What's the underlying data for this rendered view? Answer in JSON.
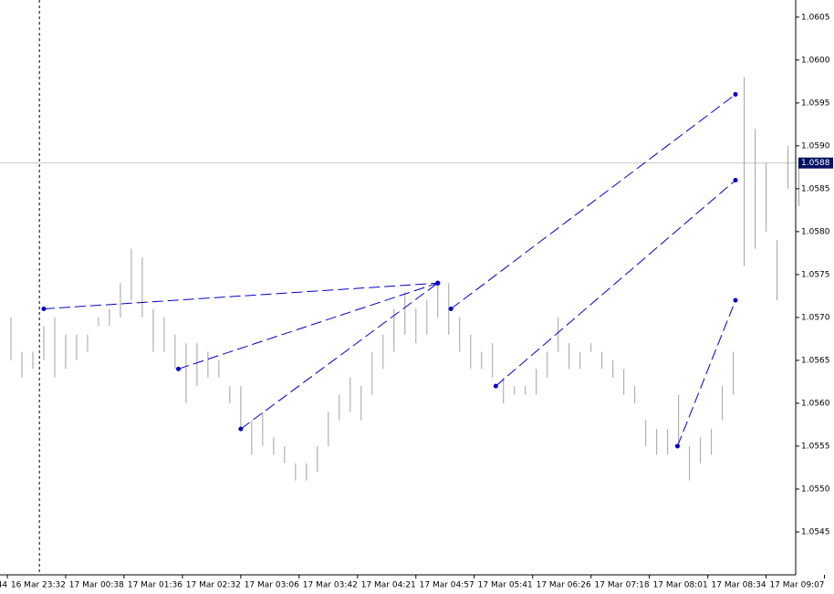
{
  "chart_data": {
    "type": "ohlc",
    "lows": [
      1.0565,
      1.0563,
      1.0564,
      1.0565,
      1.0563,
      1.0564,
      1.0565,
      1.0566,
      1.0569,
      1.0569,
      1.057,
      1.0572,
      1.057,
      1.0566,
      1.0566,
      1.0564,
      1.056,
      1.0562,
      1.0563,
      1.0563,
      1.056,
      1.0557,
      1.0554,
      1.0555,
      1.0554,
      1.0553,
      1.0551,
      1.0551,
      1.0552,
      1.0555,
      1.0558,
      1.0559,
      1.0558,
      1.0561,
      1.0564,
      1.0566,
      1.0568,
      1.0567,
      1.0568,
      1.057,
      1.0568,
      1.0566,
      1.0564,
      1.0564,
      1.0563,
      1.056,
      1.0561,
      1.0561,
      1.0561,
      1.0563,
      1.0566,
      1.0564,
      1.0564,
      1.0566,
      1.0564,
      1.0563,
      1.0561,
      1.056,
      1.0555,
      1.0554,
      1.0554,
      1.0555,
      1.0551,
      1.0553,
      1.0554,
      1.0558,
      1.0561,
      1.0576,
      1.0578,
      1.058,
      1.0572,
      1.0585,
      1.0583
    ],
    "highs": [
      1.057,
      1.0566,
      1.0566,
      1.0569,
      1.057,
      1.0568,
      1.0568,
      1.0568,
      1.057,
      1.0571,
      1.0574,
      1.0578,
      1.0577,
      1.0571,
      1.057,
      1.0568,
      1.0567,
      1.0567,
      1.0566,
      1.0565,
      1.0562,
      1.0562,
      1.0558,
      1.0559,
      1.0556,
      1.0555,
      1.0553,
      1.0553,
      1.0555,
      1.0559,
      1.0561,
      1.0563,
      1.0562,
      1.0566,
      1.0568,
      1.0571,
      1.0573,
      1.0571,
      1.0572,
      1.0574,
      1.0574,
      1.057,
      1.0568,
      1.0566,
      1.0567,
      1.0563,
      1.0562,
      1.0562,
      1.0564,
      1.0566,
      1.057,
      1.0567,
      1.0566,
      1.0567,
      1.0566,
      1.0565,
      1.0564,
      1.0562,
      1.0558,
      1.0557,
      1.0557,
      1.0561,
      1.0555,
      1.0556,
      1.0557,
      1.0562,
      1.0566,
      1.0598,
      1.0592,
      1.0588,
      1.0579,
      1.059,
      1.0588
    ],
    "trendlines": [
      {
        "x": [
          3.5,
          39.5
        ],
        "y": [
          1.0571,
          1.0574
        ]
      },
      {
        "x": [
          15.8,
          39.5
        ],
        "y": [
          1.0564,
          1.0574
        ]
      },
      {
        "x": [
          21.5,
          39.5
        ],
        "y": [
          1.0557,
          1.0574
        ]
      },
      {
        "x": [
          40.7,
          66.7
        ],
        "y": [
          1.0571,
          1.0596
        ]
      },
      {
        "x": [
          44.8,
          66.7
        ],
        "y": [
          1.0562,
          1.0586
        ]
      },
      {
        "x": [
          61.4,
          66.7
        ],
        "y": [
          1.0555,
          1.0572
        ]
      }
    ],
    "bar_color": "#a0a0a0",
    "line_color": "#0000c8",
    "current_price": 1.0588,
    "separator_x": 3.1,
    "xlim": [
      -0.5,
      72.2
    ],
    "ylim": [
      1.054,
      1.0607
    ],
    "yticks": [
      1.0545,
      {
        "value": 1.055,
        "label": "1.0550"
      },
      1.0555,
      {
        "value": 1.056,
        "label": "1.0560"
      },
      1.0565,
      {
        "value": 1.057,
        "label": "1.0570"
      },
      1.0575,
      {
        "value": 1.058,
        "label": "1.0580"
      },
      1.0585,
      {
        "value": 1.059,
        "label": "1.0590"
      },
      1.0595,
      {
        "value": 1.06,
        "label": "1.0600"
      },
      1.0605
    ],
    "xticks": [
      {
        "value": 0.17,
        "label": "44"
      },
      {
        "value": 5.5,
        "label": "16 Mar 23:32"
      },
      {
        "value": 10.83,
        "label": "17 Mar 00:38"
      },
      {
        "value": 16.17,
        "label": "17 Mar 01:36"
      },
      {
        "value": 21.5,
        "label": "17 Mar 02:32"
      },
      {
        "value": 26.83,
        "label": "17 Mar 03:06"
      },
      {
        "value": 32.17,
        "label": "17 Mar 03:42"
      },
      {
        "value": 37.5,
        "label": "17 Mar 04:21"
      },
      {
        "value": 42.83,
        "label": "17 Mar 04:57"
      },
      {
        "value": 48.17,
        "label": "17 Mar 05:41"
      },
      {
        "value": 53.5,
        "label": "17 Mar 06:26"
      },
      {
        "value": 58.83,
        "label": "17 Mar 07:18"
      },
      {
        "value": 64.17,
        "label": "17 Mar 08:01"
      },
      {
        "value": 69.5,
        "label": "17 Mar 08:34"
      },
      {
        "value": 74.83,
        "label": "17 Mar 09:07"
      }
    ]
  }
}
